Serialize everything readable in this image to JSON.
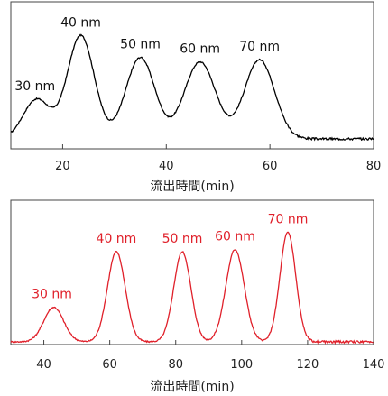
{
  "chart_data": [
    {
      "type": "line",
      "xlabel": "流出時間(min)",
      "xlim": [
        10,
        80
      ],
      "x_ticks": [
        20,
        40,
        60,
        80
      ],
      "grid": false,
      "line_color": "#000000",
      "peaks": [
        {
          "label": "30 nm",
          "x": 15,
          "height": 0.36,
          "width": 2.6
        },
        {
          "label": "40 nm",
          "x": 23.5,
          "height": 0.94,
          "width": 2.6
        },
        {
          "label": "50 nm",
          "x": 35,
          "height": 0.74,
          "width": 2.8
        },
        {
          "label": "60 nm",
          "x": 46.5,
          "height": 0.7,
          "width": 3.0
        },
        {
          "label": "70 nm",
          "x": 58,
          "height": 0.72,
          "width": 2.9
        }
      ]
    },
    {
      "type": "line",
      "xlabel": "流出時間(min)",
      "xlim": [
        30,
        140
      ],
      "x_ticks": [
        40,
        60,
        80,
        100,
        120,
        140
      ],
      "grid": false,
      "line_color": "#e0202a",
      "peaks": [
        {
          "label": "30 nm",
          "x": 43,
          "height": 0.3,
          "width": 3.0
        },
        {
          "label": "40 nm",
          "x": 62,
          "height": 0.78,
          "width": 2.7
        },
        {
          "label": "50 nm",
          "x": 82,
          "height": 0.78,
          "width": 2.6
        },
        {
          "label": "60 nm",
          "x": 98,
          "height": 0.8,
          "width": 2.8
        },
        {
          "label": "70 nm",
          "x": 114,
          "height": 0.95,
          "width": 2.4
        }
      ]
    }
  ]
}
